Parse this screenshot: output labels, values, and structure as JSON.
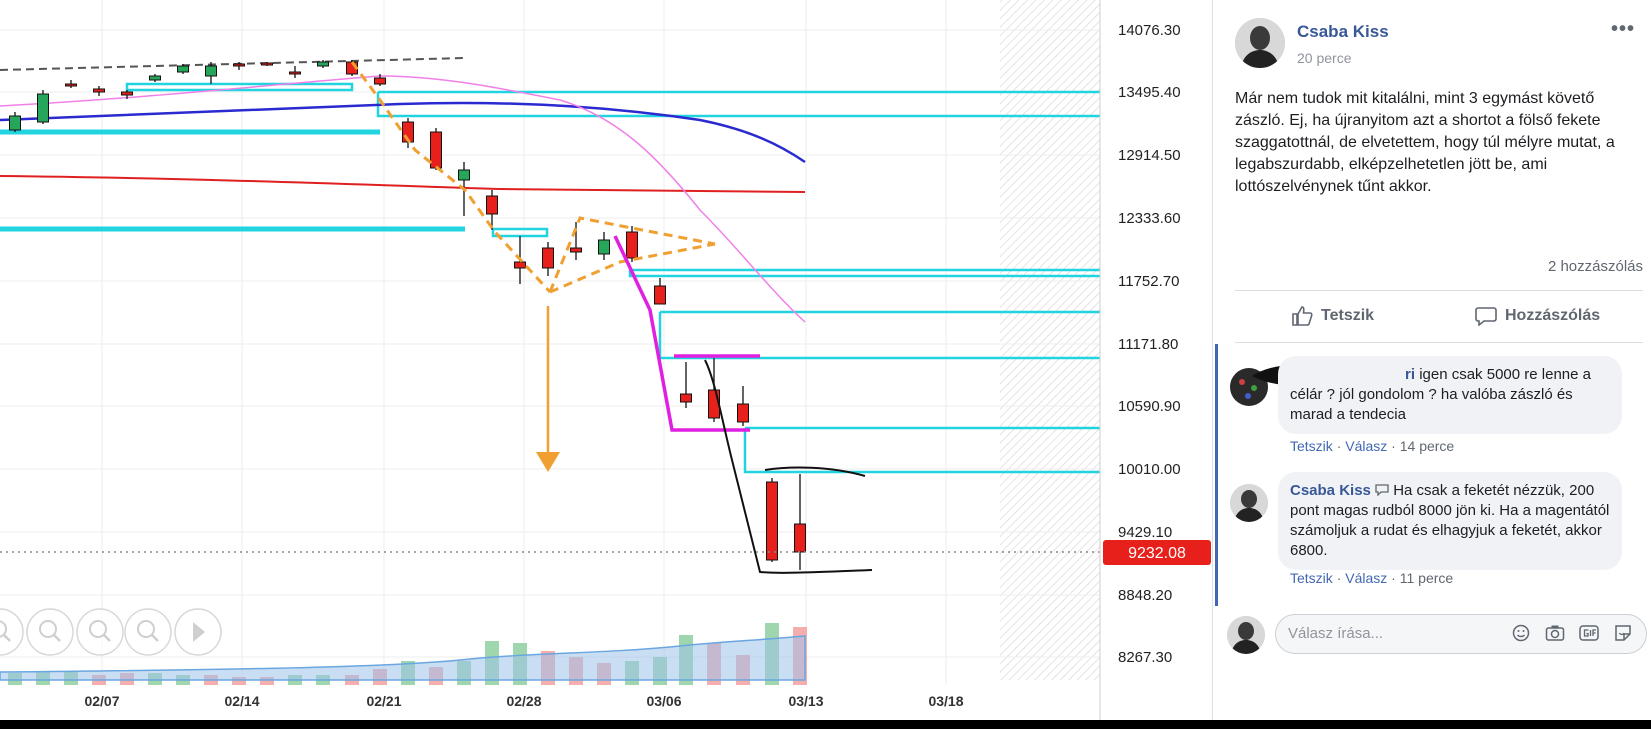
{
  "chart": {
    "price_axis_labels": [
      "14076.30",
      "13495.40",
      "12914.50",
      "12333.60",
      "11752.70",
      "11171.80",
      "10590.90",
      "10010.00",
      "9429.10",
      "8848.20",
      "8267.30"
    ],
    "date_labels": [
      "02/07",
      "02/14",
      "02/21",
      "02/28",
      "03/06",
      "03/13",
      "03/18"
    ],
    "current_price": "9232.08",
    "colors": {
      "up": "#26a65b",
      "down": "#e8201c",
      "cyan": "#22d3e0",
      "magenta": "#e020e0",
      "orange": "#f0a030",
      "blue_ma": "#2a2ad0",
      "red_ma": "#e02020",
      "pink_ma": "#f080e8",
      "price_tag": "#e8201c"
    },
    "tool_icons": [
      "zoom-out-icon",
      "zoom-reset-icon",
      "zoom-in-icon",
      "zoom-fit-icon",
      "play-icon"
    ]
  },
  "post": {
    "author": "Csaba Kiss",
    "time": "20 perce",
    "text": "Már nem tudok mit kitalálni, mint 3 egymást követő zászló. Ej, ha újranyitom azt a shortot a fölső fekete szaggatottnál, de elvetettem, hogy túl mélyre mutat, a legabszurdabb, elképzelhetetlen jött be, ami lottószelvénynek tűnt akkor.",
    "comment_count": "2 hozzászólás",
    "like_label": "Tetszik",
    "comment_label": "Hozzászólás"
  },
  "comments": [
    {
      "name": "ri",
      "text": "igen csak 5000 re lenne a célár ? jól gondolom ? ha valóba zászló és marad a tendecia",
      "like": "Tetszik",
      "reply": "Válasz",
      "time": "14 perce"
    },
    {
      "name": "Csaba Kiss",
      "text": "Ha csak a feketét nézzük, 200 pont magas rudból 8000 jön ki. Ha a magentától számoljuk a rudat és elhagyjuk a feketét, akkor 6800.",
      "like": "Tetszik",
      "reply": "Válasz",
      "time": "11 perce"
    }
  ],
  "reply_box": {
    "placeholder": "Válasz írása..."
  }
}
